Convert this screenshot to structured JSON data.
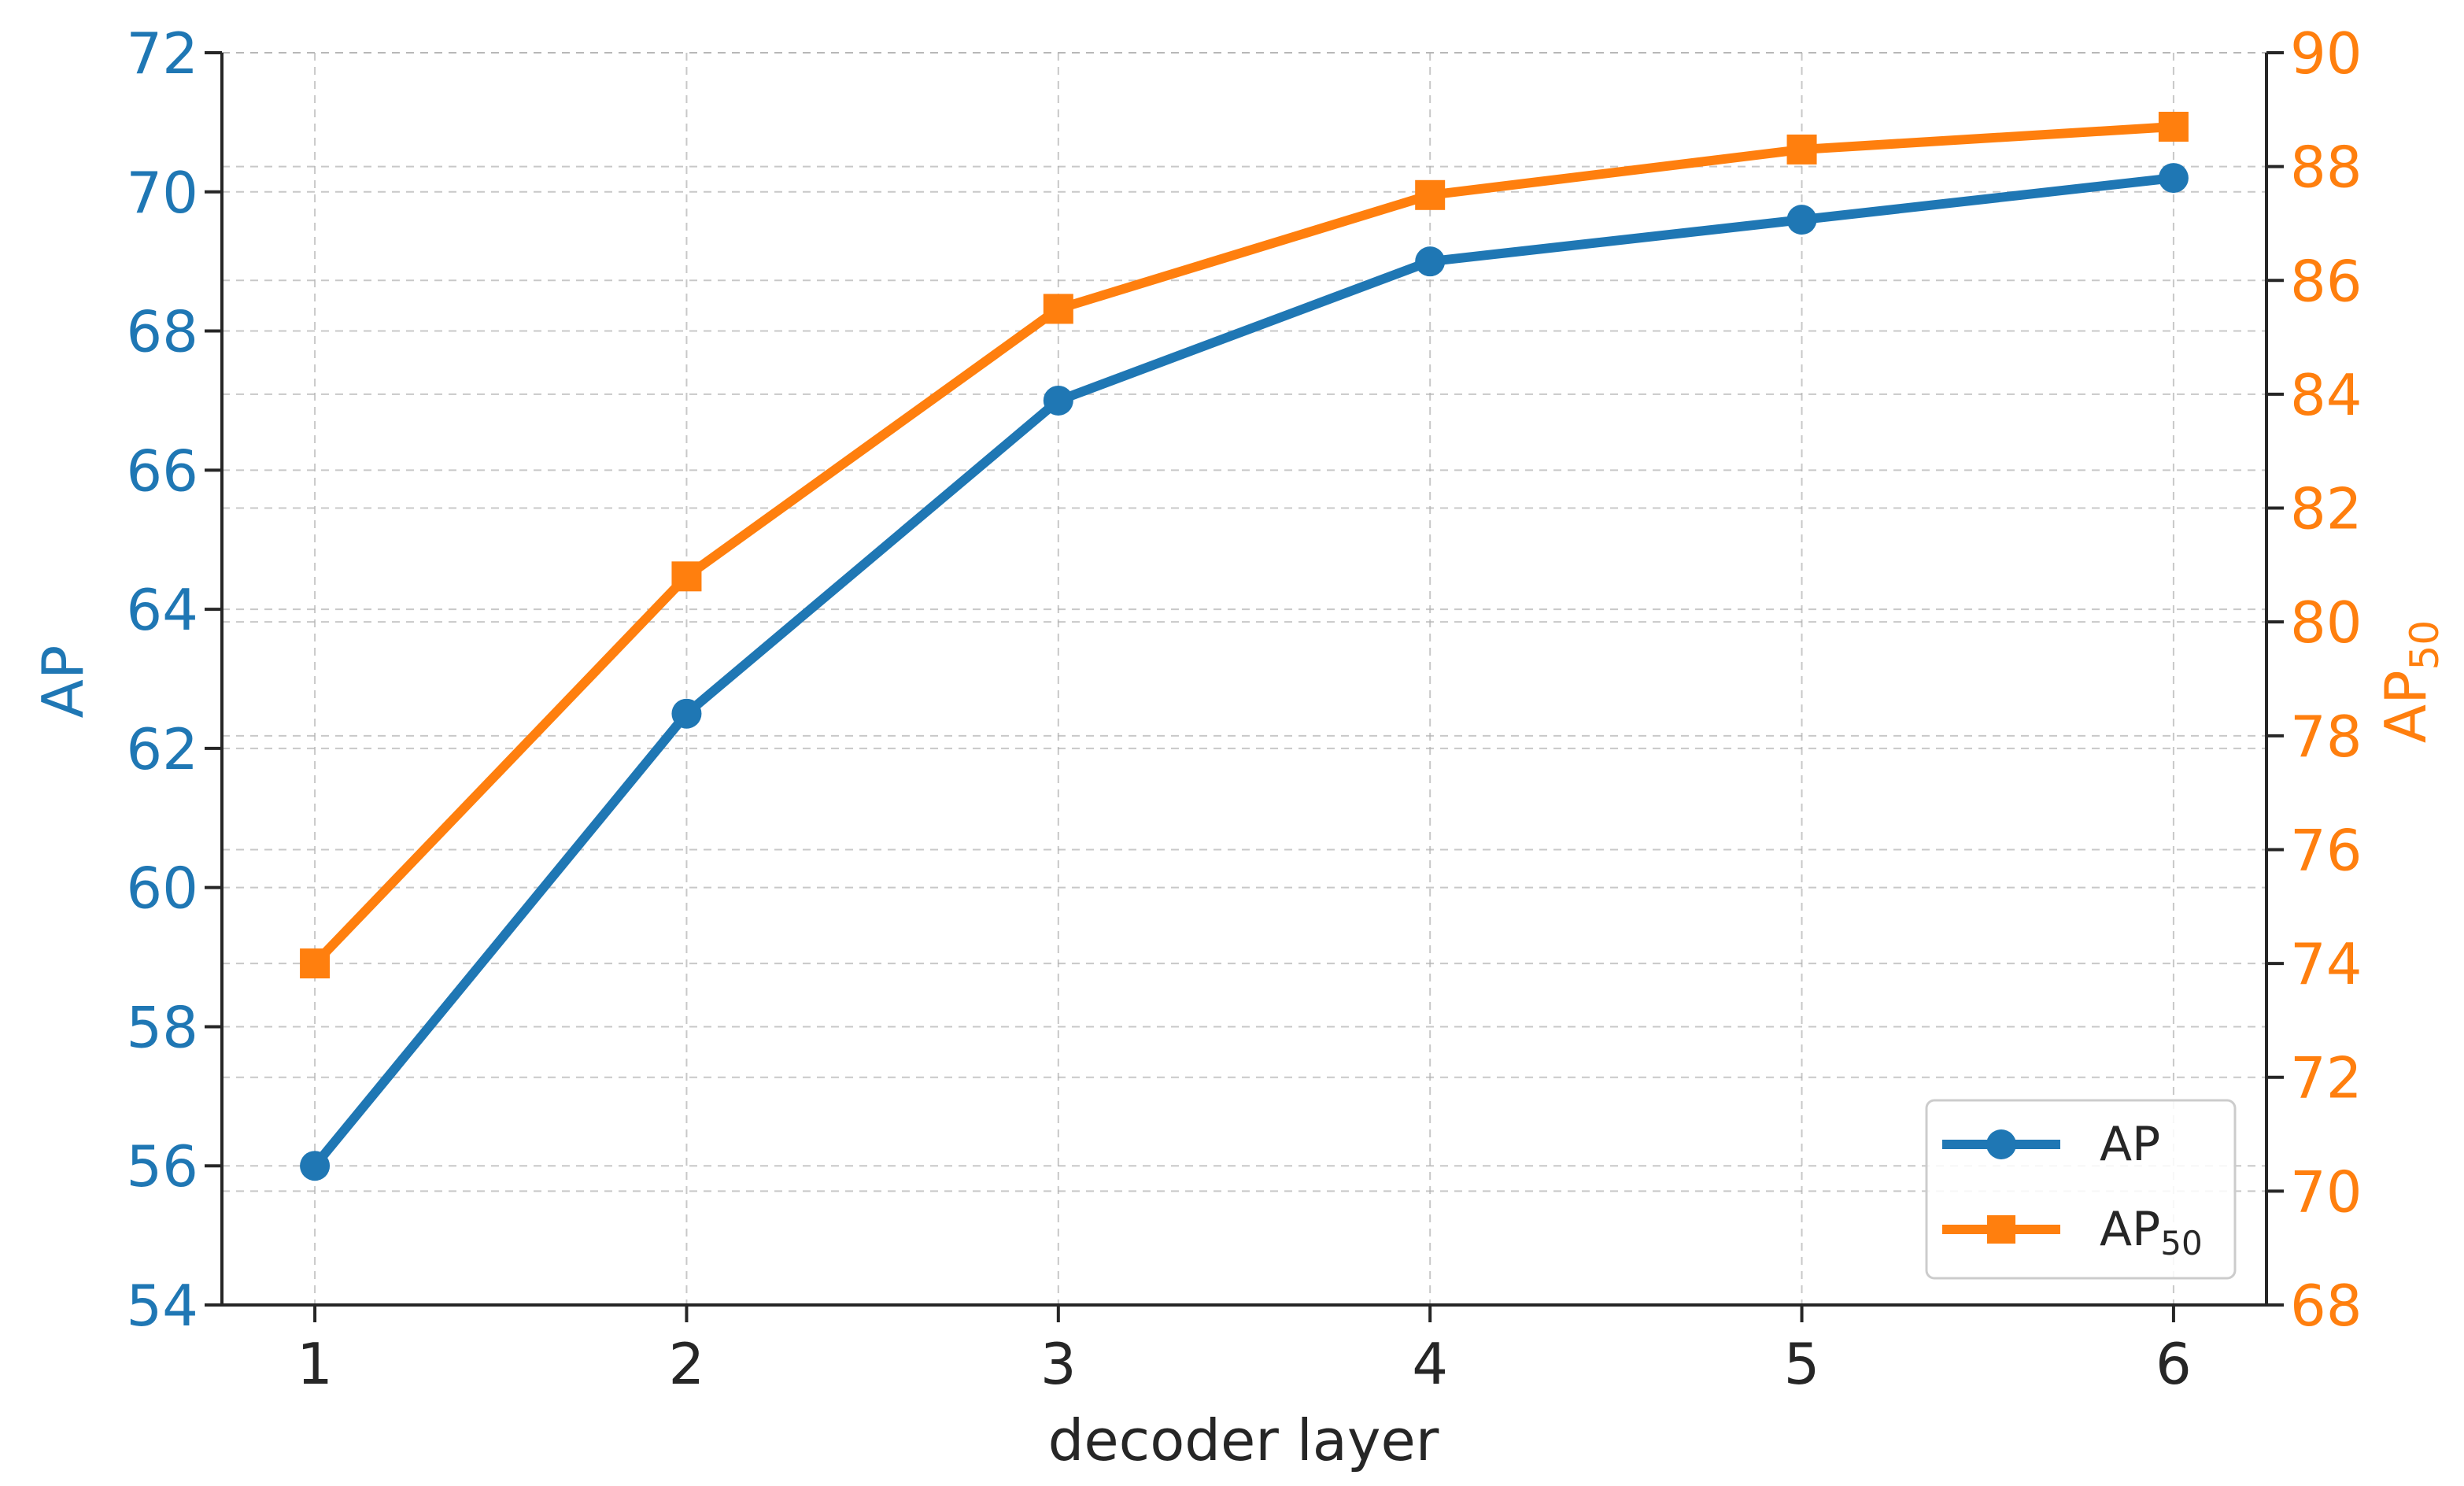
{
  "chart_data": {
    "type": "line",
    "x": [
      1,
      2,
      3,
      4,
      5,
      6
    ],
    "xlabel": "decoder layer",
    "xlim": [
      0.75,
      6.25
    ],
    "x_ticks": [
      "1",
      "2",
      "3",
      "4",
      "5",
      "6"
    ],
    "ylabel_left": "AP",
    "ylim_left": [
      54,
      72
    ],
    "y_ticks_left": [
      "54",
      "56",
      "58",
      "60",
      "62",
      "64",
      "66",
      "68",
      "70",
      "72"
    ],
    "ylabel_right": "AP",
    "ylabel_right_subscript": "50",
    "ylim_right": [
      68,
      90
    ],
    "y_ticks_right": [
      "68",
      "70",
      "72",
      "74",
      "76",
      "78",
      "80",
      "82",
      "84",
      "86",
      "88",
      "90"
    ],
    "grid": true,
    "legend_position": "lower-right",
    "series": [
      {
        "name": "AP",
        "axis": "left",
        "color": "#1f77b4",
        "marker": "circle",
        "values": [
          56.0,
          62.5,
          67.0,
          69.0,
          69.6,
          70.2
        ]
      },
      {
        "name": "AP",
        "name_subscript": "50",
        "axis": "right",
        "color": "#ff7f0e",
        "marker": "square",
        "values": [
          74.0,
          80.8,
          85.5,
          87.5,
          88.3,
          88.7
        ]
      }
    ]
  }
}
